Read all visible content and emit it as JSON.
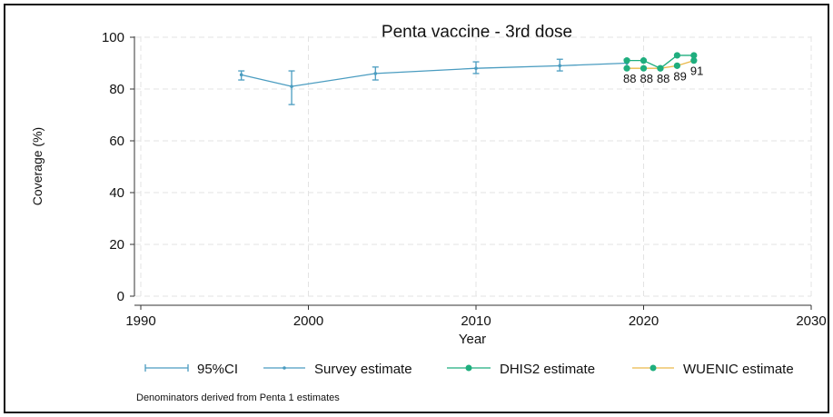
{
  "chart_data": {
    "type": "line",
    "title": "Penta vaccine - 3rd dose",
    "xlabel": "Year",
    "ylabel": "Coverage (%)",
    "xlim": [
      1990,
      2030
    ],
    "ylim": [
      0,
      100
    ],
    "xticks": [
      "1990",
      "2000",
      "2010",
      "2020",
      "2030"
    ],
    "yticks": [
      "0",
      "20",
      "40",
      "60",
      "80",
      "100"
    ],
    "grid": true,
    "legend_position": "bottom",
    "legend": [
      "95%CI",
      "Survey estimate",
      "DHIS2 estimate",
      "WUENIC estimate"
    ],
    "note": "Denominators derived from Penta 1 estimates",
    "series": [
      {
        "name": "Survey estimate",
        "color": "#4a9cc0",
        "x": [
          1996,
          1999,
          2004,
          2010,
          2015,
          2019
        ],
        "y": [
          85.5,
          81,
          86,
          88,
          89,
          90
        ],
        "ci_low": [
          83.5,
          74,
          83.5,
          86,
          87,
          88
        ],
        "ci_high": [
          87,
          87,
          88.5,
          90.5,
          91.5,
          91.5
        ]
      },
      {
        "name": "DHIS2 estimate",
        "color": "#1fae7e",
        "x": [
          2019,
          2020,
          2021,
          2022,
          2023
        ],
        "y": [
          91,
          91,
          88,
          93,
          93
        ]
      },
      {
        "name": "WUENIC estimate",
        "color": "#e9b94a",
        "marker_color": "#1fae7e",
        "x": [
          2019,
          2020,
          2021,
          2022,
          2023
        ],
        "y": [
          88,
          88,
          88,
          89,
          91
        ],
        "labels": [
          "88",
          "88",
          "88",
          "89",
          "91"
        ]
      }
    ]
  }
}
